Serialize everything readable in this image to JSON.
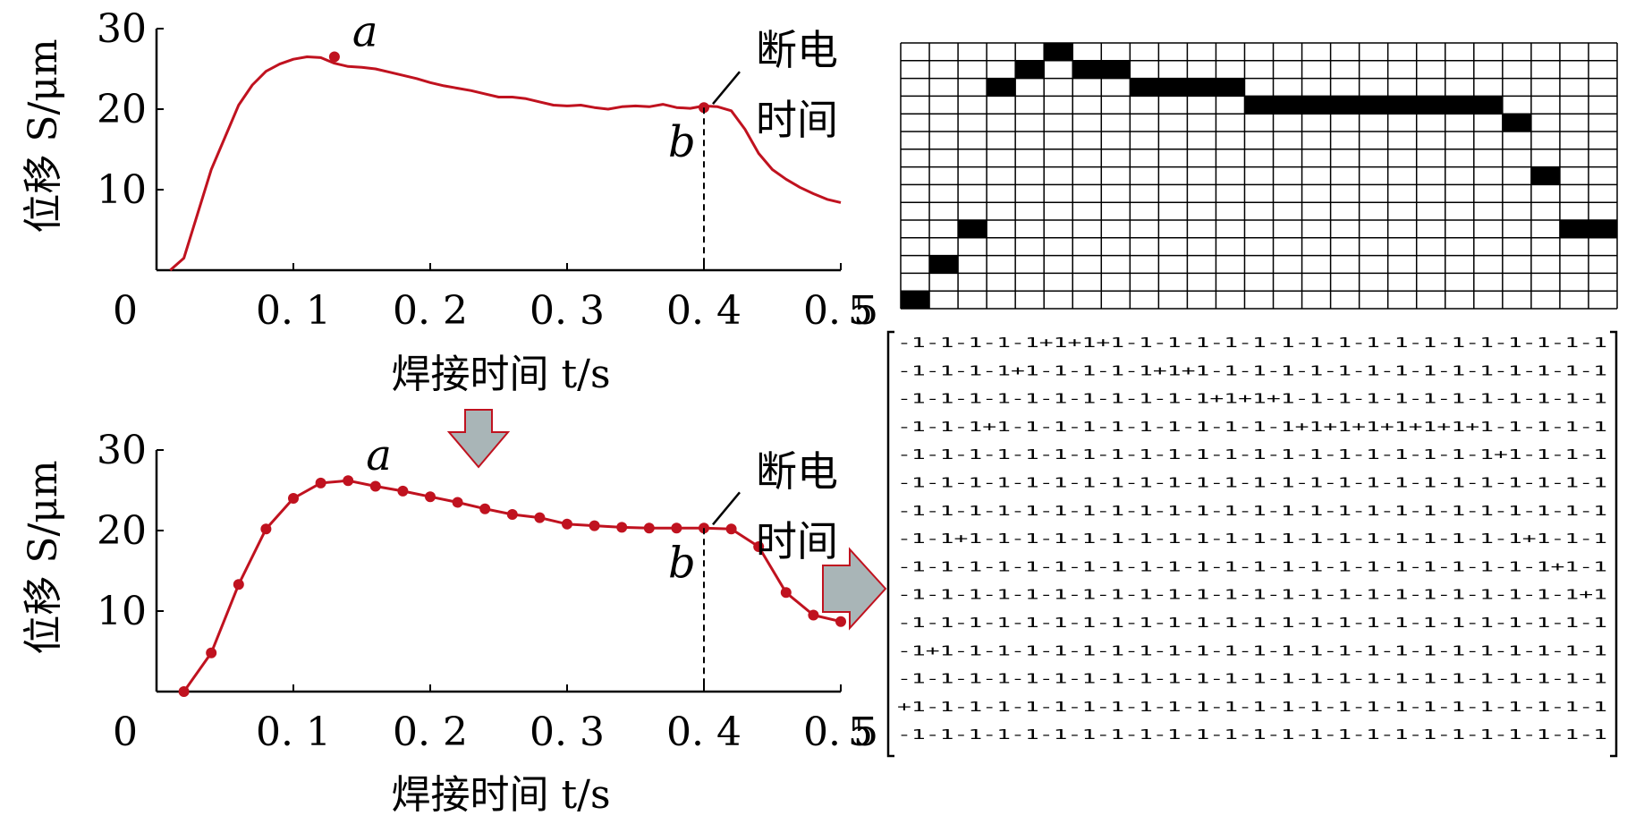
{
  "chart_data": [
    {
      "type": "line",
      "title": "",
      "xlabel": "焊接时间 t/s",
      "ylabel": "位移 S/μm",
      "xlim": [
        0,
        0.5
      ],
      "ylim": [
        0,
        30
      ],
      "x_ticks": [
        "0",
        "0. 1",
        "0. 2",
        "0. 3",
        "0. 4",
        "0. 5"
      ],
      "y_ticks": [
        "10",
        "20",
        "30"
      ],
      "series": [
        {
          "color": "#c0121f",
          "x": [
            0.01,
            0.02,
            0.03,
            0.04,
            0.05,
            0.06,
            0.07,
            0.08,
            0.09,
            0.1,
            0.11,
            0.12,
            0.13,
            0.14,
            0.15,
            0.16,
            0.17,
            0.18,
            0.19,
            0.2,
            0.21,
            0.22,
            0.23,
            0.24,
            0.25,
            0.26,
            0.27,
            0.28,
            0.29,
            0.3,
            0.31,
            0.32,
            0.33,
            0.34,
            0.35,
            0.36,
            0.37,
            0.38,
            0.39,
            0.4,
            0.41,
            0.42,
            0.43,
            0.44,
            0.45,
            0.46,
            0.47,
            0.48,
            0.49,
            0.5
          ],
          "y": [
            0,
            1.5,
            7,
            12.5,
            16.5,
            20.5,
            23,
            24.7,
            25.6,
            26.2,
            26.5,
            26.4,
            25.7,
            25.3,
            25.2,
            25.0,
            24.6,
            24.2,
            23.8,
            23.3,
            22.9,
            22.6,
            22.3,
            21.9,
            21.5,
            21.5,
            21.3,
            20.9,
            20.5,
            20.4,
            20.5,
            20.2,
            20.0,
            20.3,
            20.4,
            20.3,
            20.6,
            20.2,
            20.1,
            20.4,
            20.3,
            19.8,
            17.5,
            14.5,
            12.5,
            11.3,
            10.3,
            9.5,
            8.8,
            8.4
          ]
        }
      ],
      "annotations": [
        {
          "label": "a",
          "x": 0.13,
          "y": 26.5
        },
        {
          "label": "b",
          "x": 0.4,
          "y": 20.2
        },
        {
          "label": "断电",
          "line2": "时间"
        }
      ]
    },
    {
      "type": "line",
      "title": "",
      "xlabel": "焊接时间 t/s",
      "ylabel": "位移 S/μm",
      "xlim": [
        0,
        0.5
      ],
      "ylim": [
        0,
        30
      ],
      "x_ticks": [
        "0",
        "0. 1",
        "0. 2",
        "0. 3",
        "0. 4",
        "0. 5"
      ],
      "y_ticks": [
        "10",
        "20",
        "30"
      ],
      "series": [
        {
          "color": "#c0121f",
          "marker": "circle",
          "x": [
            0.02,
            0.04,
            0.06,
            0.08,
            0.1,
            0.12,
            0.14,
            0.16,
            0.18,
            0.2,
            0.22,
            0.24,
            0.26,
            0.28,
            0.3,
            0.32,
            0.34,
            0.36,
            0.38,
            0.4,
            0.42,
            0.44,
            0.46,
            0.48,
            0.5
          ],
          "y": [
            0,
            4.8,
            13.3,
            20.2,
            24.0,
            25.9,
            26.2,
            25.5,
            24.9,
            24.2,
            23.5,
            22.7,
            22.0,
            21.6,
            20.8,
            20.6,
            20.4,
            20.3,
            20.3,
            20.3,
            20.2,
            18.0,
            12.3,
            9.5,
            8.7
          ]
        }
      ],
      "annotations": [
        {
          "label": "a",
          "x": 0.14,
          "y": 26.2
        },
        {
          "label": "b",
          "x": 0.4,
          "y": 20.3
        },
        {
          "label": "断电",
          "line2": "时间"
        }
      ]
    },
    {
      "type": "heatmap",
      "title": "",
      "rows": 15,
      "cols": 25,
      "filled_row_by_col_from_bottom": [
        1,
        3,
        5,
        13,
        14,
        15,
        14,
        14,
        13,
        13,
        13,
        13,
        12,
        12,
        12,
        12,
        12,
        12,
        12,
        12,
        12,
        11,
        8,
        5,
        5
      ],
      "fill_color": "#000000"
    },
    {
      "type": "table",
      "title": "",
      "rows": [
        "-1-1-1-1-1+1+1+1-1-1-1-1-1-1-1-1-1-1-1-1-1-1-1-1-1",
        "-1-1-1-1+1-1-1-1-1+1+1-1-1-1-1-1-1-1-1-1-1-1-1-1-1",
        "-1-1-1-1-1-1-1-1-1-1-1+1+1+1-1-1-1-1-1-1-1-1-1-1-1",
        "-1-1-1+1-1-1-1-1-1-1-1-1-1-1+1+1+1+1+1+1+1-1-1-1-1",
        "-1-1-1-1-1-1-1-1-1-1-1-1-1-1-1-1-1-1-1-1-1+1-1-1-1",
        "-1-1-1-1-1-1-1-1-1-1-1-1-1-1-1-1-1-1-1-1-1-1-1-1-1",
        "-1-1-1-1-1-1-1-1-1-1-1-1-1-1-1-1-1-1-1-1-1-1-1-1-1",
        "-1-1+1-1-1-1-1-1-1-1-1-1-1-1-1-1-1-1-1-1-1-1+1-1-1",
        "-1-1-1-1-1-1-1-1-1-1-1-1-1-1-1-1-1-1-1-1-1-1-1+1-1",
        "-1-1-1-1-1-1-1-1-1-1-1-1-1-1-1-1-1-1-1-1-1-1-1-1+1",
        "-1-1-1-1-1-1-1-1-1-1-1-1-1-1-1-1-1-1-1-1-1-1-1-1-1",
        "-1+1-1-1-1-1-1-1-1-1-1-1-1-1-1-1-1-1-1-1-1-1-1-1-1",
        "-1-1-1-1-1-1-1-1-1-1-1-1-1-1-1-1-1-1-1-1-1-1-1-1-1",
        "+1-1-1-1-1-1-1-1-1-1-1-1-1-1-1-1-1-1-1-1-1-1-1-1-1",
        "-1-1-1-1-1-1-1-1-1-1-1-1-1-1-1-1-1-1-1-1-1-1-1-1-1"
      ]
    }
  ],
  "colors": {
    "curve": "#c0121f",
    "arrow_fill": "#a9b5b7",
    "arrow_stroke": "#c0121f",
    "grid_line": "#000000"
  }
}
